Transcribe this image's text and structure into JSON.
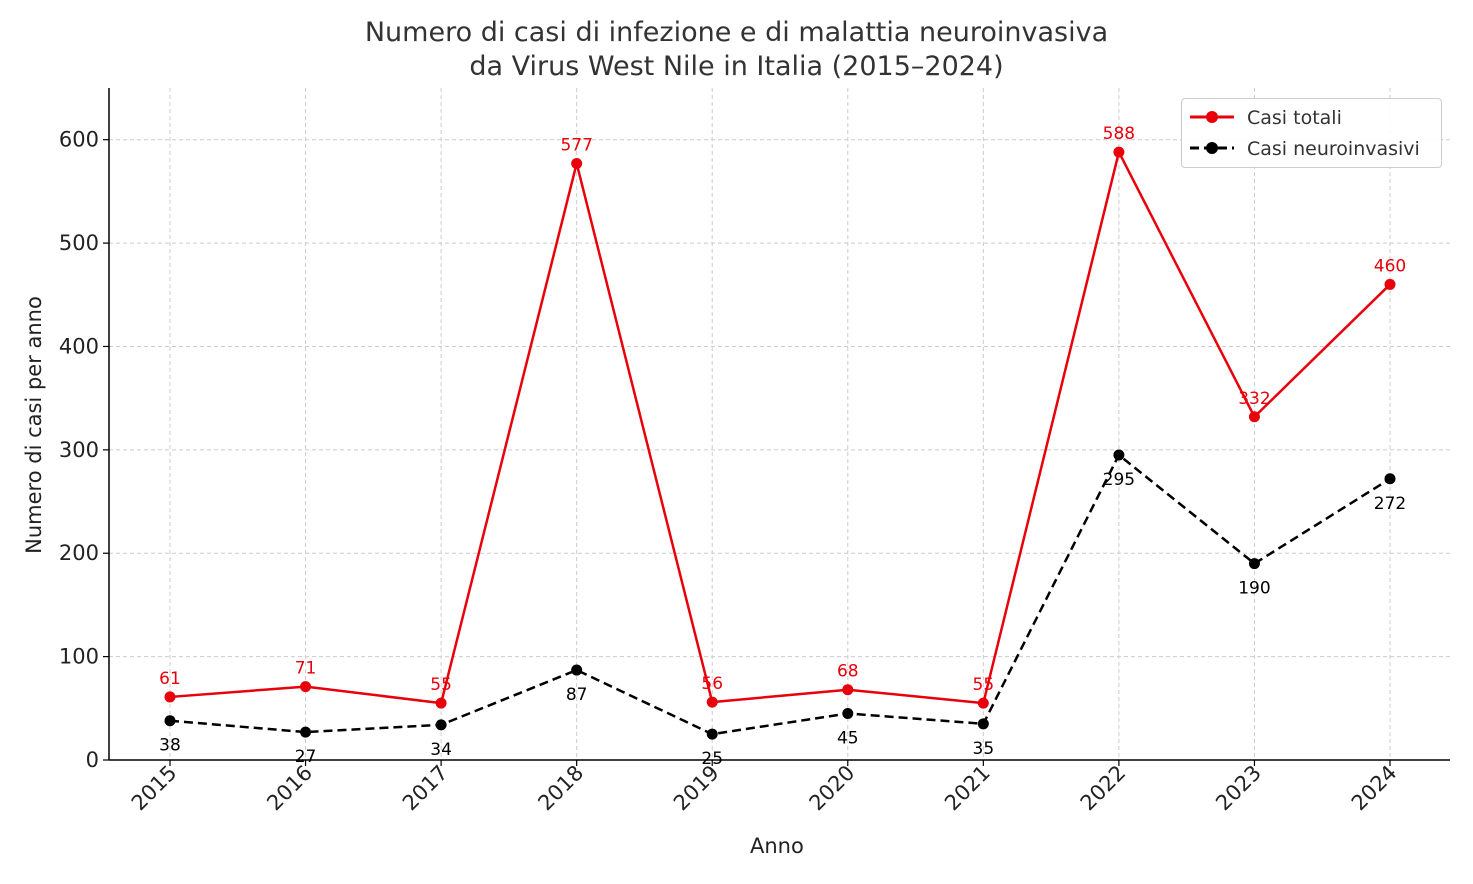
{
  "chart_data": {
    "type": "line",
    "title": "Numero di casi di infezione e di malattia neuroinvasiva",
    "subtitle": "da Virus West Nile in Italia (2015–2024)",
    "xlabel": "Anno",
    "ylabel": "Numero di casi per anno",
    "x": [
      "2015",
      "2016",
      "2017",
      "2018",
      "2019",
      "2020",
      "2021",
      "2022",
      "2023",
      "2024"
    ],
    "ylim": [
      0,
      650
    ],
    "yticks": [
      "0",
      "100",
      "200",
      "300",
      "400",
      "500",
      "600"
    ],
    "grid": true,
    "legend_position": "top-right",
    "series": [
      {
        "name": "Casi totali",
        "color": "#e8000b",
        "style": "solid",
        "values": [
          61,
          71,
          55,
          577,
          56,
          68,
          55,
          588,
          332,
          460
        ],
        "labels": [
          "61",
          "71",
          "55",
          "577",
          "56",
          "68",
          "55",
          "588",
          "332",
          "460"
        ]
      },
      {
        "name": "Casi neuroinvasivi",
        "color": "#000000",
        "style": "dashed",
        "values": [
          38,
          27,
          34,
          87,
          25,
          45,
          35,
          295,
          190,
          272
        ],
        "labels": [
          "38",
          "27",
          "34",
          "87",
          "25",
          "45",
          "35",
          "295",
          "190",
          "272"
        ]
      }
    ]
  }
}
